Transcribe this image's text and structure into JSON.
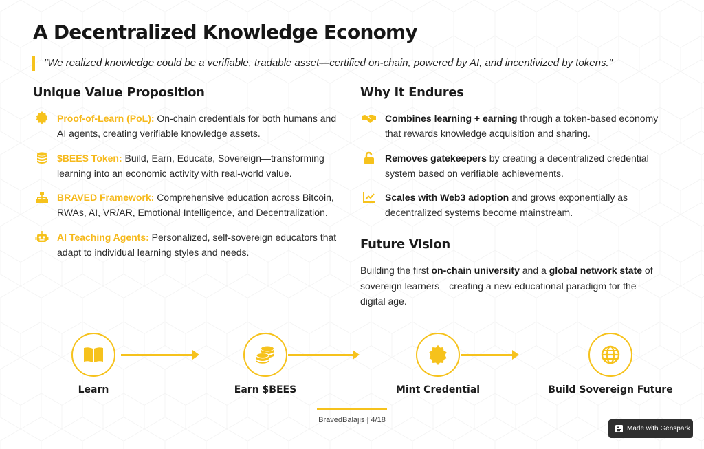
{
  "title": "A Decentralized Knowledge Economy",
  "quote": "\"We realized knowledge could be a verifiable, tradable asset—certified on-chain, powered by AI, and incentivized by tokens.\"",
  "left": {
    "heading": "Unique Value Proposition",
    "items": [
      {
        "icon": "certificate-icon",
        "highlight": "Proof-of-Learn (PoL):",
        "text1": " On-chain credentials for both humans and",
        "text2": "AI agents, creating verifiable knowledge assets."
      },
      {
        "icon": "coins-icon",
        "highlight": "$BEES Token:",
        "text1": " Build, Earn, Educate, Sovereign—transforming",
        "text2": "learning into an economic activity with real-world value."
      },
      {
        "icon": "sitemap-icon",
        "highlight": "BRAVED Framework:",
        "text1": " Comprehensive education across Bitcoin,",
        "text2": "RWAs, AI, VR/AR, Emotional Intelligence, and Decentralization."
      },
      {
        "icon": "robot-icon",
        "highlight": "AI Teaching Agents:",
        "text1": " Personalized, self-sovereign educators that",
        "text2": "adapt to individual learning styles and needs."
      }
    ]
  },
  "right": {
    "heading": "Why It Endures",
    "items": [
      {
        "icon": "handshake-icon",
        "bold": "Combines learning + earning",
        "text1": " through a token-based economy",
        "text2": "that rewards knowledge acquisition and sharing."
      },
      {
        "icon": "unlock-icon",
        "bold": "Removes gatekeepers",
        "text1": " by creating a decentralized credential",
        "text2": "system based on verifiable achievements."
      },
      {
        "icon": "chart-line-icon",
        "bold": "Scales with Web3 adoption",
        "text1": " and grows exponentially as",
        "text2": "decentralized systems become mainstream."
      }
    ]
  },
  "vision": {
    "heading": "Future Vision",
    "t1": "Building the first ",
    "b1": "on-chain university",
    "t2": " and a ",
    "b2": "global network state",
    "t3": " of",
    "line2": "sovereign learners—creating a new educational paradigm for the",
    "line3": "digital age."
  },
  "flow": [
    {
      "icon": "book-icon",
      "label": "Learn"
    },
    {
      "icon": "coins-icon",
      "label": "Earn $BEES"
    },
    {
      "icon": "certificate-icon",
      "label": "Mint Credential"
    },
    {
      "icon": "globe-icon",
      "label": "Build Sovereign Future"
    }
  ],
  "footer": "BravedBalajis | 4/18",
  "badge": "Made with Genspark",
  "colors": {
    "accent": "#f6c21c",
    "highlight_text": "#f6b91b"
  }
}
